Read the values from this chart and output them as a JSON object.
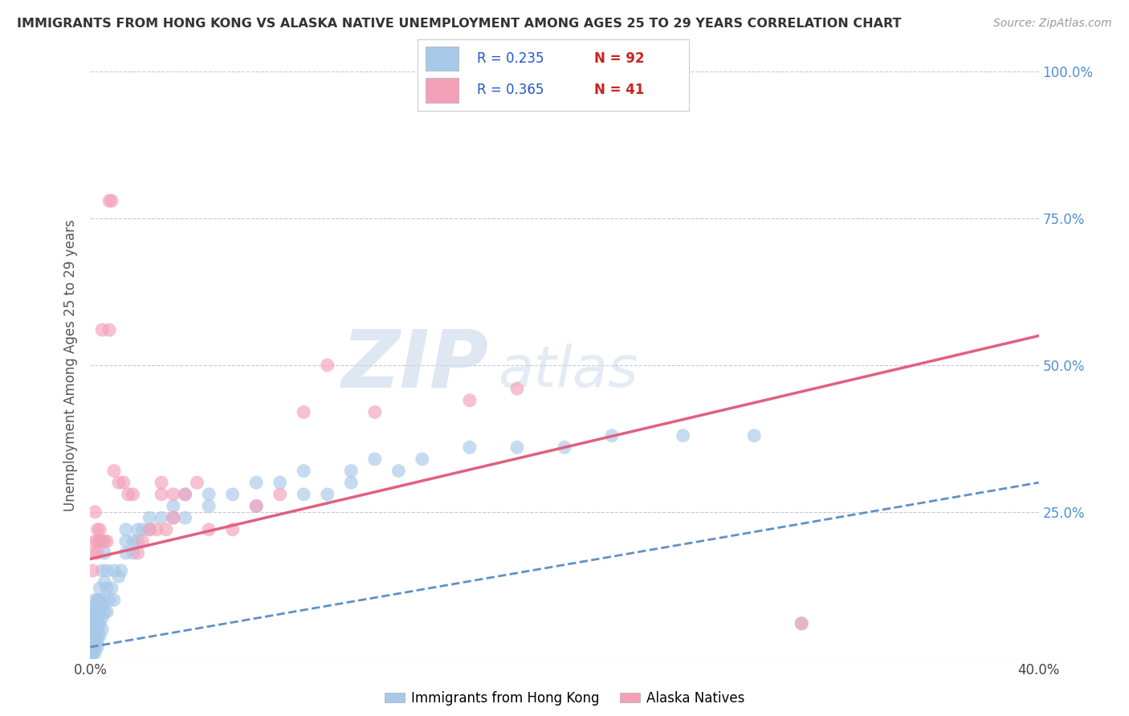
{
  "title": "IMMIGRANTS FROM HONG KONG VS ALASKA NATIVE UNEMPLOYMENT AMONG AGES 25 TO 29 YEARS CORRELATION CHART",
  "source": "Source: ZipAtlas.com",
  "ylabel": "Unemployment Among Ages 25 to 29 years",
  "xlim": [
    0.0,
    0.4
  ],
  "ylim": [
    0.0,
    1.0
  ],
  "xticks": [
    0.0,
    0.1,
    0.2,
    0.3,
    0.4
  ],
  "xticklabels": [
    "0.0%",
    "",
    "",
    "",
    "40.0%"
  ],
  "yticks": [
    0.0,
    0.25,
    0.5,
    0.75,
    1.0
  ],
  "left_yticklabels": [
    "",
    "",
    "",
    "",
    ""
  ],
  "right_yticklabels": [
    "",
    "25.0%",
    "50.0%",
    "75.0%",
    "100.0%"
  ],
  "legend_label1": "Immigrants from Hong Kong",
  "legend_label2": "Alaska Natives",
  "blue_color": "#a8c8e8",
  "pink_color": "#f4a0b8",
  "blue_line_color": "#6090c8",
  "pink_line_color": "#e06080",
  "watermark_zip": "ZIP",
  "watermark_atlas": "atlas",
  "blue_scatter_x": [
    0.001,
    0.001,
    0.001,
    0.001,
    0.001,
    0.001,
    0.001,
    0.001,
    0.001,
    0.001,
    0.001,
    0.001,
    0.001,
    0.001,
    0.001,
    0.001,
    0.002,
    0.002,
    0.002,
    0.002,
    0.002,
    0.002,
    0.002,
    0.002,
    0.002,
    0.002,
    0.003,
    0.003,
    0.003,
    0.003,
    0.003,
    0.003,
    0.003,
    0.004,
    0.004,
    0.004,
    0.004,
    0.004,
    0.005,
    0.005,
    0.005,
    0.005,
    0.006,
    0.006,
    0.006,
    0.007,
    0.007,
    0.007,
    0.008,
    0.009,
    0.01,
    0.01,
    0.012,
    0.013,
    0.015,
    0.015,
    0.018,
    0.02,
    0.022,
    0.025,
    0.03,
    0.035,
    0.04,
    0.05,
    0.06,
    0.07,
    0.09,
    0.1,
    0.11,
    0.13,
    0.015,
    0.018,
    0.02,
    0.025,
    0.035,
    0.04,
    0.05,
    0.07,
    0.08,
    0.09,
    0.11,
    0.12,
    0.14,
    0.16,
    0.18,
    0.2,
    0.22,
    0.25,
    0.28,
    0.3,
    0.005,
    0.006
  ],
  "blue_scatter_y": [
    0.01,
    0.01,
    0.01,
    0.02,
    0.02,
    0.02,
    0.03,
    0.03,
    0.04,
    0.04,
    0.05,
    0.05,
    0.06,
    0.07,
    0.08,
    0.09,
    0.01,
    0.02,
    0.02,
    0.03,
    0.04,
    0.05,
    0.06,
    0.07,
    0.08,
    0.1,
    0.02,
    0.03,
    0.04,
    0.05,
    0.06,
    0.08,
    0.1,
    0.04,
    0.06,
    0.08,
    0.1,
    0.12,
    0.05,
    0.07,
    0.09,
    0.15,
    0.08,
    0.1,
    0.13,
    0.08,
    0.12,
    0.15,
    0.1,
    0.12,
    0.1,
    0.15,
    0.14,
    0.15,
    0.18,
    0.22,
    0.18,
    0.2,
    0.22,
    0.22,
    0.24,
    0.24,
    0.24,
    0.26,
    0.28,
    0.26,
    0.28,
    0.28,
    0.3,
    0.32,
    0.2,
    0.2,
    0.22,
    0.24,
    0.26,
    0.28,
    0.28,
    0.3,
    0.3,
    0.32,
    0.32,
    0.34,
    0.34,
    0.36,
    0.36,
    0.36,
    0.38,
    0.38,
    0.38,
    0.06,
    0.2,
    0.18
  ],
  "pink_scatter_x": [
    0.001,
    0.001,
    0.002,
    0.002,
    0.003,
    0.003,
    0.003,
    0.004,
    0.004,
    0.005,
    0.006,
    0.007,
    0.008,
    0.008,
    0.009,
    0.01,
    0.012,
    0.014,
    0.016,
    0.018,
    0.02,
    0.022,
    0.025,
    0.028,
    0.03,
    0.03,
    0.032,
    0.035,
    0.035,
    0.04,
    0.045,
    0.05,
    0.06,
    0.07,
    0.08,
    0.09,
    0.1,
    0.12,
    0.16,
    0.18,
    0.3
  ],
  "pink_scatter_y": [
    0.15,
    0.18,
    0.2,
    0.25,
    0.18,
    0.2,
    0.22,
    0.2,
    0.22,
    0.56,
    0.2,
    0.2,
    0.56,
    0.78,
    0.78,
    0.32,
    0.3,
    0.3,
    0.28,
    0.28,
    0.18,
    0.2,
    0.22,
    0.22,
    0.28,
    0.3,
    0.22,
    0.24,
    0.28,
    0.28,
    0.3,
    0.22,
    0.22,
    0.26,
    0.28,
    0.42,
    0.5,
    0.42,
    0.44,
    0.46,
    0.06
  ],
  "blue_trend_x": [
    0.0,
    0.4
  ],
  "blue_trend_y": [
    0.02,
    0.3
  ],
  "pink_trend_x": [
    0.0,
    0.4
  ],
  "pink_trend_y": [
    0.17,
    0.55
  ]
}
